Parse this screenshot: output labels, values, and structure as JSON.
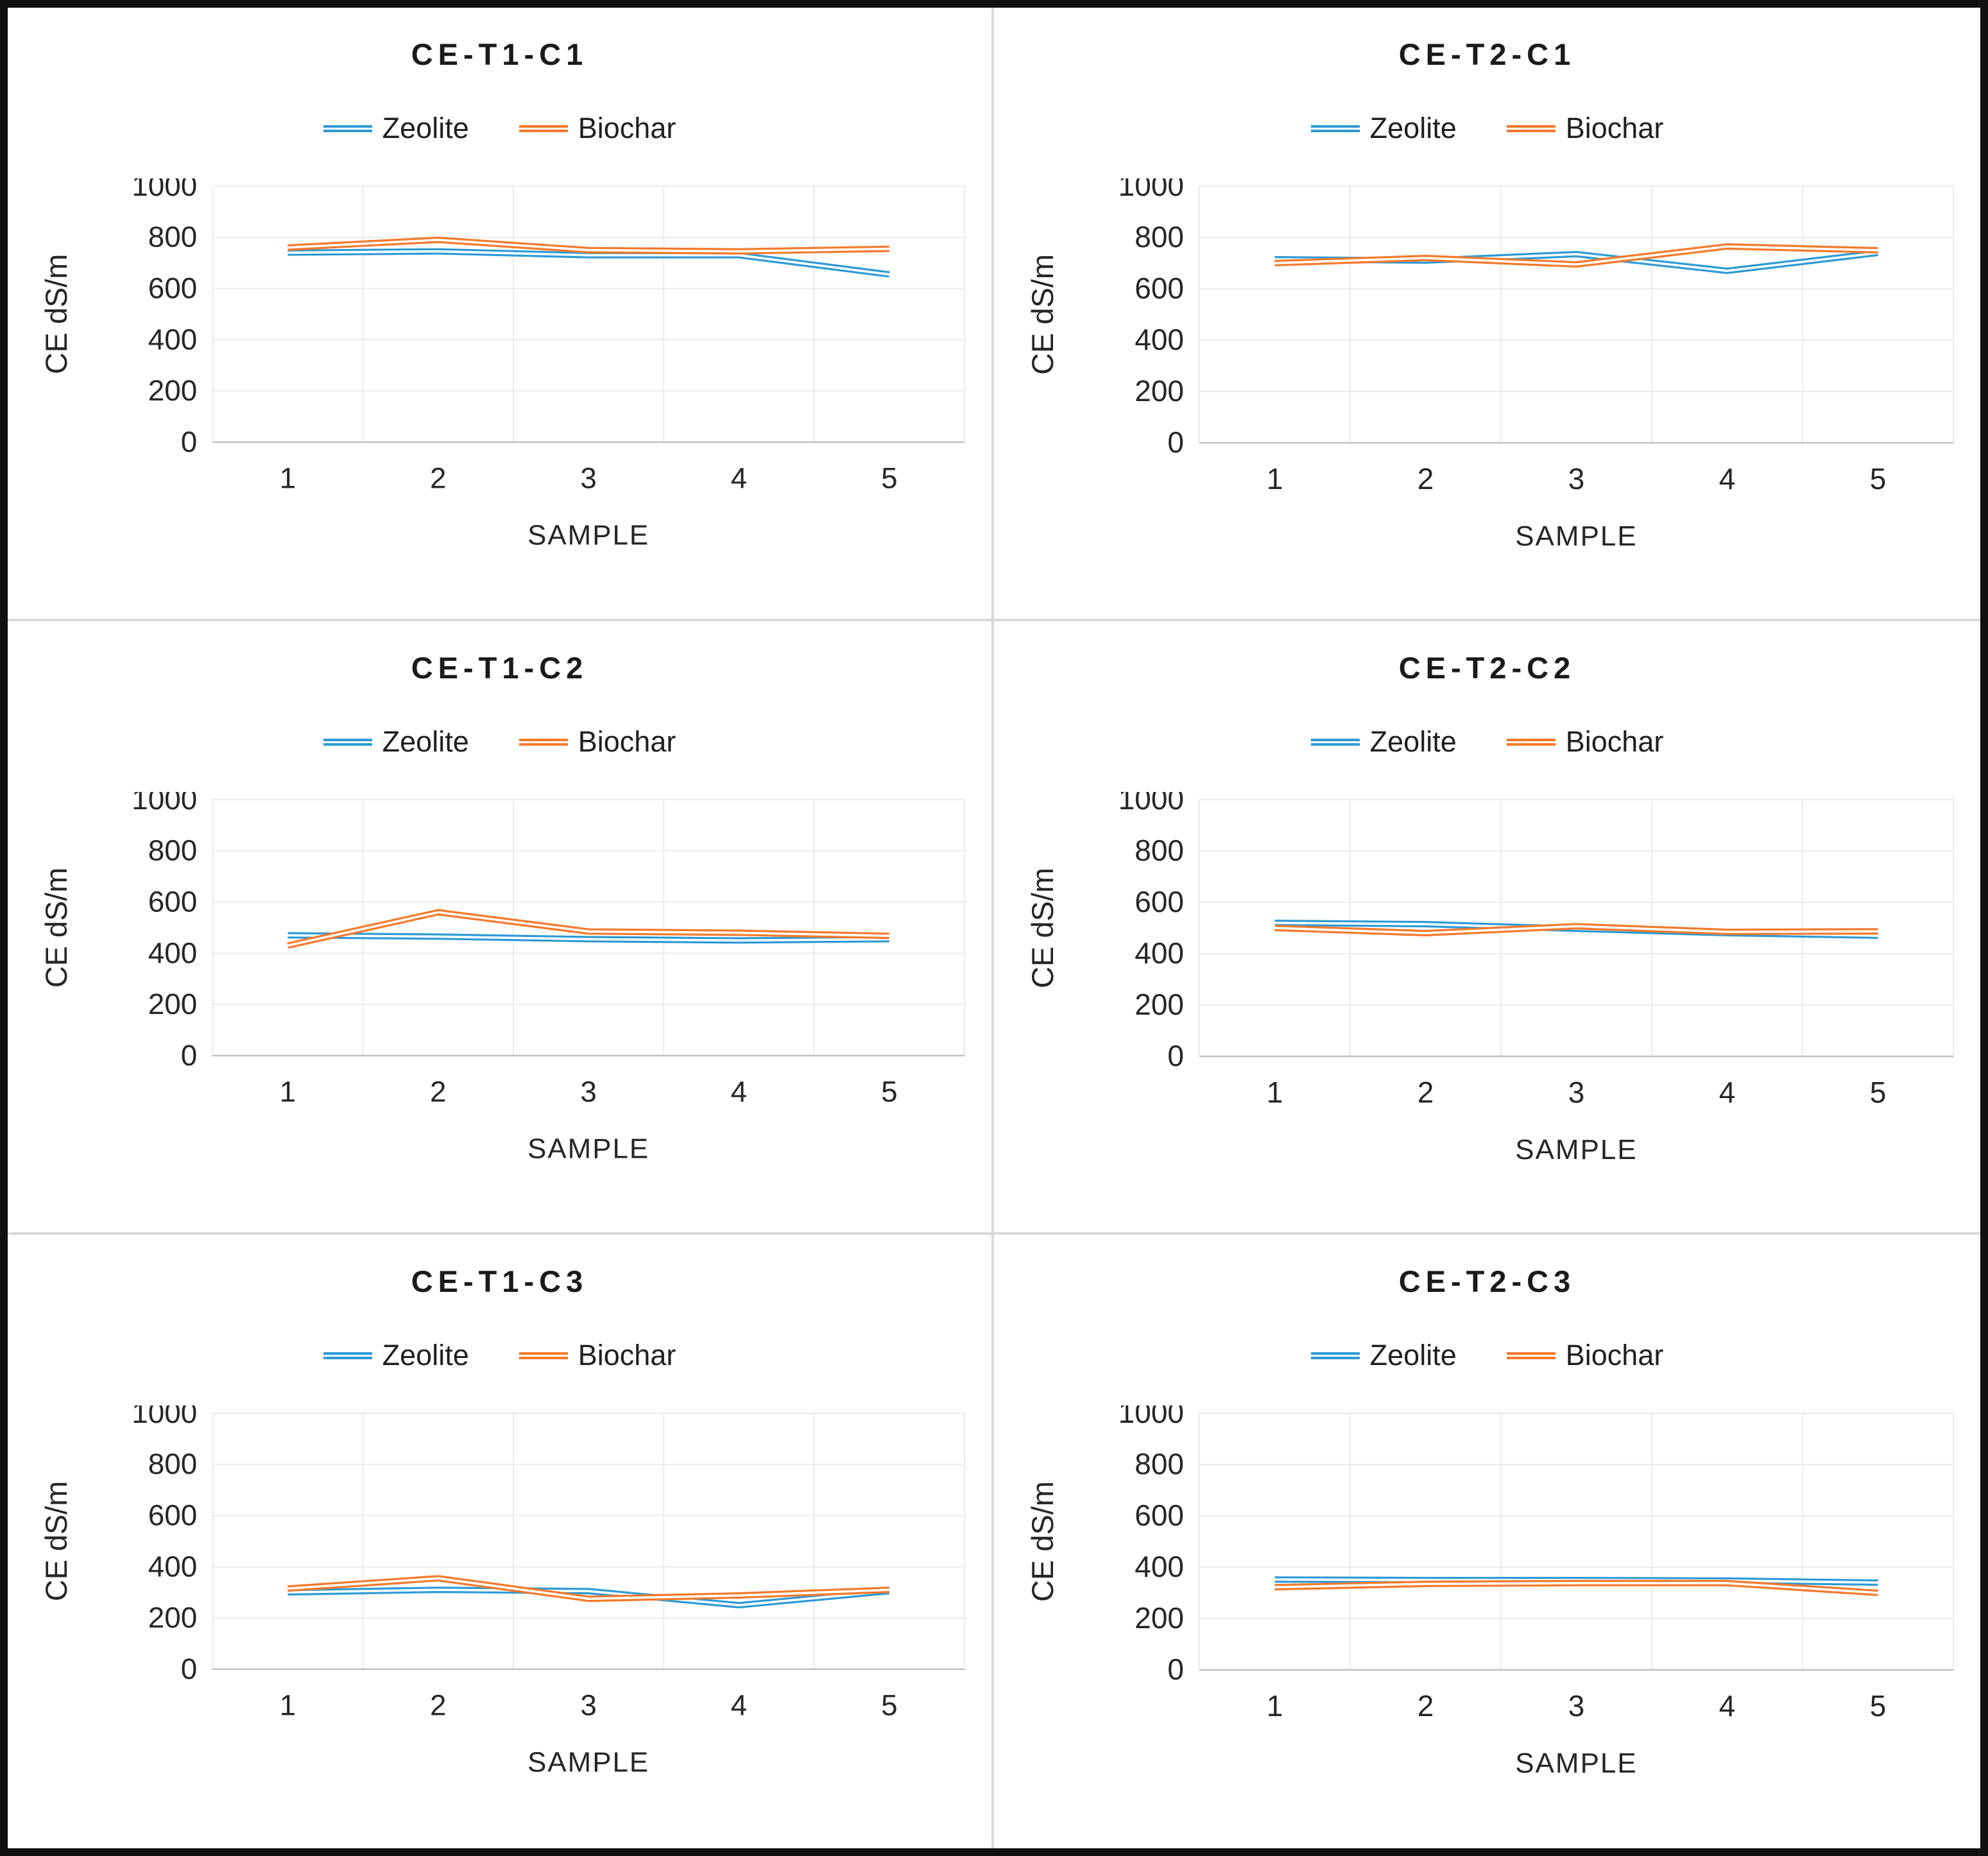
{
  "legend": {
    "zeolite": "Zeolite",
    "biochar": "Biochar"
  },
  "colors": {
    "zeolite_line": "#2e9bd5",
    "biochar_line": "#f5792a",
    "gridline": "#ebebeb",
    "axis_line": "#bfbfbf",
    "title_text": "#1a1a1a",
    "label_text": "#262626",
    "panel_divider": "#d9d9d9",
    "outer_border": "#101010"
  },
  "axes": {
    "xlabel": "SAMPLE",
    "ylabel": "CE dS/m",
    "ytick_labels": [
      "0",
      "200",
      "400",
      "600",
      "800",
      "1000"
    ],
    "xtick_labels": [
      "1",
      "2",
      "3",
      "4",
      "5"
    ]
  },
  "chart_data": [
    {
      "type": "line",
      "title": "CE-T1-C1",
      "categories": [
        1,
        2,
        3,
        4,
        5
      ],
      "series": [
        {
          "name": "Zeolite",
          "color": "#2e9bd5",
          "values": [
            740,
            745,
            730,
            730,
            655
          ]
        },
        {
          "name": "Biochar",
          "color": "#f5792a",
          "values": [
            760,
            790,
            750,
            745,
            755
          ]
        }
      ],
      "xlabel": "SAMPLE",
      "ylabel": "CE dS/m",
      "ylim": [
        0,
        1000
      ],
      "ytick_step": 200,
      "grid": true,
      "legend_position": "top"
    },
    {
      "type": "line",
      "title": "CE-T2-C1",
      "categories": [
        1,
        2,
        3,
        4,
        5
      ],
      "series": [
        {
          "name": "Zeolite",
          "color": "#2e9bd5",
          "values": [
            715,
            710,
            735,
            670,
            740
          ]
        },
        {
          "name": "Biochar",
          "color": "#f5792a",
          "values": [
            700,
            720,
            695,
            765,
            750
          ]
        }
      ],
      "xlabel": "SAMPLE",
      "ylabel": "CE dS/m",
      "ylim": [
        0,
        1000
      ],
      "ytick_step": 200,
      "grid": true,
      "legend_position": "top"
    },
    {
      "type": "line",
      "title": "CE-T1-C2",
      "categories": [
        1,
        2,
        3,
        4,
        5
      ],
      "series": [
        {
          "name": "Zeolite",
          "color": "#2e9bd5",
          "values": [
            470,
            465,
            455,
            450,
            455
          ]
        },
        {
          "name": "Biochar",
          "color": "#f5792a",
          "values": [
            430,
            560,
            485,
            480,
            468
          ]
        }
      ],
      "xlabel": "SAMPLE",
      "ylabel": "CE dS/m",
      "ylim": [
        0,
        1000
      ],
      "ytick_step": 200,
      "grid": true,
      "legend_position": "top"
    },
    {
      "type": "line",
      "title": "CE-T2-C2",
      "categories": [
        1,
        2,
        3,
        4,
        5
      ],
      "series": [
        {
          "name": "Zeolite",
          "color": "#2e9bd5",
          "values": [
            520,
            515,
            497,
            480,
            470
          ]
        },
        {
          "name": "Biochar",
          "color": "#f5792a",
          "values": [
            500,
            480,
            507,
            485,
            487
          ]
        }
      ],
      "xlabel": "SAMPLE",
      "ylabel": "CE dS/m",
      "ylim": [
        0,
        1000
      ],
      "ytick_step": 200,
      "grid": true,
      "legend_position": "top"
    },
    {
      "type": "line",
      "title": "CE-T1-C3",
      "categories": [
        1,
        2,
        3,
        4,
        5
      ],
      "series": [
        {
          "name": "Zeolite",
          "color": "#2e9bd5",
          "values": [
            300,
            310,
            305,
            250,
            305
          ]
        },
        {
          "name": "Biochar",
          "color": "#f5792a",
          "values": [
            315,
            355,
            275,
            288,
            310
          ]
        }
      ],
      "xlabel": "SAMPLE",
      "ylabel": "CE dS/m",
      "ylim": [
        0,
        1000
      ],
      "ytick_step": 200,
      "grid": true,
      "legend_position": "top"
    },
    {
      "type": "line",
      "title": "CE-T2-C3",
      "categories": [
        1,
        2,
        3,
        4,
        5
      ],
      "series": [
        {
          "name": "Zeolite",
          "color": "#2e9bd5",
          "values": [
            352,
            350,
            350,
            348,
            340
          ]
        },
        {
          "name": "Biochar",
          "color": "#f5792a",
          "values": [
            322,
            335,
            338,
            338,
            300
          ]
        }
      ],
      "xlabel": "SAMPLE",
      "ylabel": "CE dS/m",
      "ylim": [
        0,
        1000
      ],
      "ytick_step": 200,
      "grid": true,
      "legend_position": "top"
    }
  ]
}
